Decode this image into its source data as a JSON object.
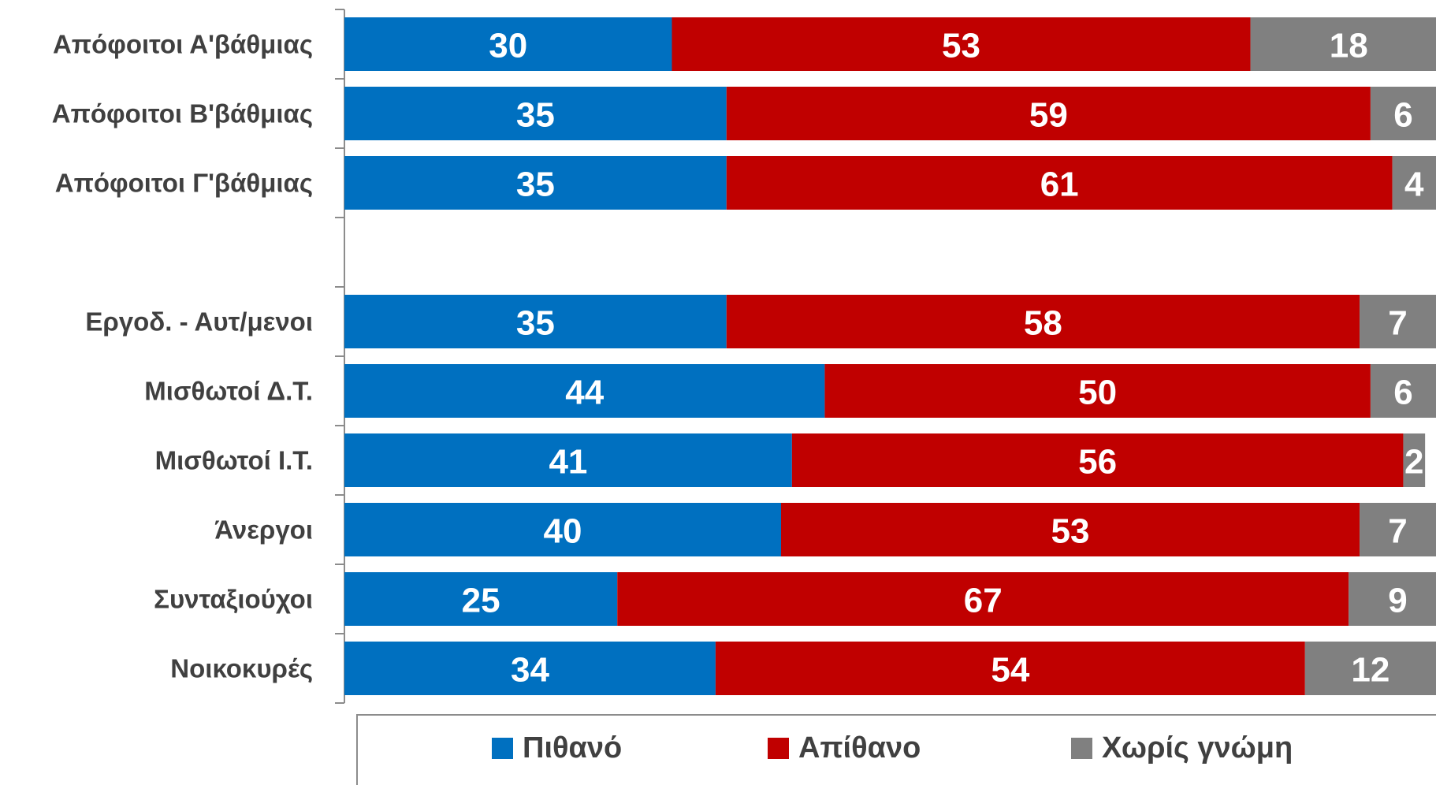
{
  "chart_data": {
    "type": "bar",
    "orientation": "horizontal",
    "stacked": true,
    "categories": [
      "Απόφοιτοι Α'βάθμιας",
      "Απόφοιτοι Β'βάθμιας",
      "Απόφοιτοι Γ'βάθμιας",
      "",
      "Εργοδ. - Αυτ/μενοι",
      "Μισθωτοί Δ.Τ.",
      "Μισθωτοί Ι.Τ.",
      "Άνεργοι",
      "Συνταξιούχοι",
      "Νοικοκυρές"
    ],
    "series": [
      {
        "name": "Πιθανό",
        "color": "#0070c0",
        "values": [
          30,
          35,
          35,
          null,
          35,
          44,
          41,
          40,
          25,
          34
        ]
      },
      {
        "name": "Απίθανο",
        "color": "#c00000",
        "values": [
          53,
          59,
          61,
          null,
          58,
          50,
          56,
          53,
          67,
          54
        ]
      },
      {
        "name": "Χωρίς γνώμη",
        "color": "#808080",
        "values": [
          18,
          6,
          4,
          null,
          7,
          6,
          2,
          7,
          9,
          12
        ]
      }
    ],
    "xlim": [
      0,
      100
    ],
    "data_labels": true,
    "legend_position": "bottom"
  }
}
